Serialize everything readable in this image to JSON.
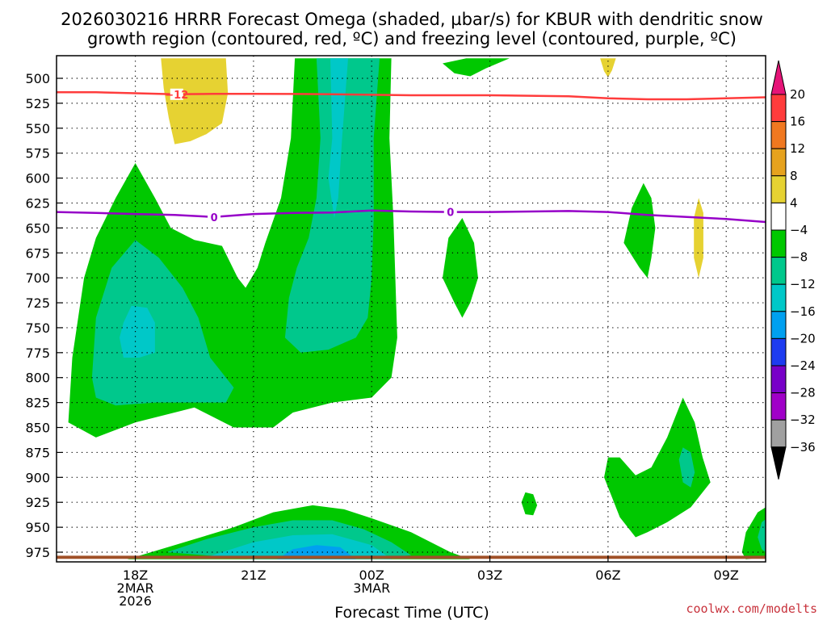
{
  "chart_data": {
    "type": "heatmap",
    "title_line1": "2026030216 HRRR Forecast Omega (shaded, µbar/s) for KBUR with dendritic snow",
    "title_line2": "growth region (contoured, red, ºC) and freezing level (contoured, purple, ºC)",
    "xlabel": "Forecast Time (UTC)",
    "watermark": "coolwx.com/modelts",
    "x_unit": "hours since 16Z 2 Mar 2026",
    "xlim": [
      0,
      18
    ],
    "ylim_hpa": [
      975,
      480
    ],
    "x_ticks": [
      {
        "x": 2,
        "l1": "18Z",
        "l2": "2MAR",
        "l3": "2026"
      },
      {
        "x": 5,
        "l1": "21Z",
        "l2": "",
        "l3": ""
      },
      {
        "x": 8,
        "l1": "00Z",
        "l2": "3MAR",
        "l3": ""
      },
      {
        "x": 11,
        "l1": "03Z",
        "l2": "",
        "l3": ""
      },
      {
        "x": 14,
        "l1": "06Z",
        "l2": "",
        "l3": ""
      },
      {
        "x": 17,
        "l1": "09Z",
        "l2": "",
        "l3": ""
      }
    ],
    "y_ticks": [
      500,
      525,
      550,
      575,
      600,
      625,
      650,
      675,
      700,
      725,
      750,
      775,
      800,
      825,
      850,
      875,
      900,
      925,
      950,
      975
    ],
    "colorbar": {
      "labels": [
        "20",
        "16",
        "12",
        "8",
        "4",
        "−4",
        "−8",
        "−12",
        "−16",
        "−20",
        "−24",
        "−28",
        "−32",
        "−36"
      ],
      "colors": [
        "#ff3c3c",
        "#f07820",
        "#e6a21e",
        "#e6d232",
        "#ffffff",
        "#00c800",
        "#00c88c",
        "#00c8c8",
        "#00a0f0",
        "#1e3cf0",
        "#7800c8",
        "#a000c8",
        "#a0a0a0"
      ],
      "top_color": "#e61478",
      "bottom_color": "#000000"
    },
    "contours": {
      "dgz": {
        "label": "−12",
        "color": "#ff3c3c",
        "points": [
          [
            0,
            514
          ],
          [
            1,
            514
          ],
          [
            2,
            515
          ],
          [
            3,
            516
          ],
          [
            4,
            515.5
          ],
          [
            5,
            515.5
          ],
          [
            6,
            515.7
          ],
          [
            7,
            516
          ],
          [
            8,
            516.5
          ],
          [
            9,
            517
          ],
          [
            10,
            517
          ],
          [
            11,
            517
          ],
          [
            12,
            517.5
          ],
          [
            13,
            518
          ],
          [
            14,
            520
          ],
          [
            15,
            521
          ],
          [
            16,
            521
          ],
          [
            17,
            520
          ],
          [
            18,
            519
          ]
        ]
      },
      "freezing": {
        "label": "0",
        "color": "#9600c8",
        "points": [
          [
            0,
            634
          ],
          [
            1,
            635
          ],
          [
            2,
            636
          ],
          [
            3,
            637
          ],
          [
            4,
            639
          ],
          [
            5,
            636
          ],
          [
            6,
            635
          ],
          [
            7,
            634.5
          ],
          [
            8,
            632.5
          ],
          [
            9,
            633.5
          ],
          [
            10,
            634
          ],
          [
            11,
            634
          ],
          [
            12,
            633.5
          ],
          [
            13,
            633
          ],
          [
            14,
            634
          ],
          [
            15,
            637
          ],
          [
            16,
            639
          ],
          [
            17,
            641
          ],
          [
            18,
            644
          ]
        ]
      }
    },
    "regions": [
      {
        "level": "−4",
        "color": "#00c800",
        "points": [
          [
            0.3,
            845
          ],
          [
            0.4,
            780
          ],
          [
            0.7,
            700
          ],
          [
            1,
            660
          ],
          [
            1.5,
            620
          ],
          [
            2,
            585
          ],
          [
            2.5,
            620
          ],
          [
            2.9,
            650
          ],
          [
            3.5,
            662
          ],
          [
            4.2,
            668
          ],
          [
            4.6,
            700
          ],
          [
            4.8,
            710
          ],
          [
            5.1,
            690
          ],
          [
            5.3,
            665
          ],
          [
            5.7,
            620
          ],
          [
            5.95,
            560
          ],
          [
            6.05,
            480
          ],
          [
            8.5,
            480
          ],
          [
            8.45,
            560
          ],
          [
            8.55,
            640
          ],
          [
            8.6,
            700
          ],
          [
            8.65,
            760
          ],
          [
            8.5,
            800
          ],
          [
            8,
            820
          ],
          [
            7,
            825
          ],
          [
            6,
            835
          ],
          [
            5.5,
            850
          ],
          [
            4.5,
            850
          ],
          [
            3.5,
            830
          ],
          [
            2,
            845
          ],
          [
            1,
            860
          ]
        ]
      },
      {
        "level": "−4",
        "color": "#00c800",
        "points": [
          [
            1.8,
            982
          ],
          [
            3,
            968
          ],
          [
            4.5,
            950
          ],
          [
            5.5,
            935
          ],
          [
            6.5,
            928
          ],
          [
            7.3,
            932
          ],
          [
            8,
            941
          ],
          [
            9,
            955
          ],
          [
            10,
            975
          ],
          [
            10.5,
            982
          ]
        ]
      },
      {
        "level": "−4",
        "color": "#00c800",
        "points": [
          [
            9.8,
            485
          ],
          [
            10.4,
            480
          ],
          [
            11.5,
            480
          ],
          [
            10.9,
            490
          ],
          [
            10.5,
            498
          ],
          [
            10.1,
            495
          ]
        ]
      },
      {
        "level": "−4",
        "color": "#00c800",
        "points": [
          [
            9.8,
            700
          ],
          [
            9.95,
            660
          ],
          [
            10.3,
            640
          ],
          [
            10.6,
            665
          ],
          [
            10.7,
            700
          ],
          [
            10.5,
            725
          ],
          [
            10.3,
            740
          ],
          [
            10.1,
            725
          ]
        ]
      },
      {
        "level": "−4",
        "color": "#00c800",
        "points": [
          [
            14.4,
            665
          ],
          [
            14.6,
            630
          ],
          [
            14.9,
            605
          ],
          [
            15.1,
            620
          ],
          [
            15.2,
            650
          ],
          [
            15.1,
            680
          ],
          [
            15,
            700
          ],
          [
            14.8,
            690
          ]
        ]
      },
      {
        "level": "−4",
        "color": "#00c800",
        "points": [
          [
            13.9,
            900
          ],
          [
            14,
            880
          ],
          [
            14.3,
            880
          ],
          [
            14.7,
            898
          ],
          [
            15.1,
            890
          ],
          [
            15.5,
            860
          ],
          [
            15.9,
            820
          ],
          [
            16.2,
            845
          ],
          [
            16.4,
            880
          ],
          [
            16.6,
            905
          ],
          [
            16.1,
            930
          ],
          [
            15.5,
            945
          ],
          [
            15,
            955
          ],
          [
            14.7,
            960
          ],
          [
            14.3,
            940
          ],
          [
            14.1,
            920
          ]
        ]
      },
      {
        "level": "−4",
        "color": "#00c800",
        "points": [
          [
            11.8,
            925
          ],
          [
            11.9,
            915
          ],
          [
            12.1,
            917
          ],
          [
            12.2,
            928
          ],
          [
            12.1,
            938
          ],
          [
            11.9,
            937
          ]
        ]
      },
      {
        "level": "−4",
        "color": "#00c800",
        "points": [
          [
            17.4,
            975
          ],
          [
            17.5,
            955
          ],
          [
            17.8,
            935
          ],
          [
            18,
            930
          ],
          [
            18,
            980
          ],
          [
            17.5,
            982
          ]
        ]
      },
      {
        "level": "−8",
        "color": "#00c88c",
        "points": [
          [
            0.9,
            800
          ],
          [
            1,
            740
          ],
          [
            1.4,
            690
          ],
          [
            2,
            662
          ],
          [
            2.6,
            680
          ],
          [
            3.2,
            710
          ],
          [
            3.6,
            740
          ],
          [
            3.9,
            780
          ],
          [
            4.5,
            810
          ],
          [
            4.3,
            825
          ],
          [
            3.5,
            825
          ],
          [
            2.5,
            825
          ],
          [
            1.5,
            828
          ],
          [
            1,
            820
          ]
        ]
      },
      {
        "level": "−8",
        "color": "#00c88c",
        "points": [
          [
            5.8,
            760
          ],
          [
            5.9,
            720
          ],
          [
            6.1,
            690
          ],
          [
            6.4,
            660
          ],
          [
            6.6,
            620
          ],
          [
            6.7,
            560
          ],
          [
            6.6,
            480
          ],
          [
            8.2,
            480
          ],
          [
            8.05,
            560
          ],
          [
            8.05,
            640
          ],
          [
            8.0,
            700
          ],
          [
            7.9,
            740
          ],
          [
            7.6,
            760
          ],
          [
            6.9,
            772
          ],
          [
            6.2,
            775
          ]
        ]
      },
      {
        "level": "−8",
        "color": "#00c88c",
        "points": [
          [
            2.8,
            975
          ],
          [
            3.8,
            962
          ],
          [
            5,
            950
          ],
          [
            6,
            943
          ],
          [
            7,
            943
          ],
          [
            7.8,
            952
          ],
          [
            8.5,
            965
          ],
          [
            9,
            978
          ],
          [
            8,
            982
          ],
          [
            5,
            982
          ]
        ]
      },
      {
        "level": "−8",
        "color": "#00c88c",
        "points": [
          [
            15.8,
            882
          ],
          [
            15.9,
            870
          ],
          [
            16.1,
            875
          ],
          [
            16.2,
            895
          ],
          [
            16.1,
            910
          ],
          [
            15.9,
            905
          ]
        ]
      },
      {
        "level": "−8",
        "color": "#00c88c",
        "points": [
          [
            17.8,
            960
          ],
          [
            17.9,
            945
          ],
          [
            18,
            942
          ],
          [
            18,
            975
          ],
          [
            17.9,
            972
          ]
        ]
      },
      {
        "level": "−12",
        "color": "#00c8c8",
        "points": [
          [
            1.6,
            760
          ],
          [
            1.7,
            745
          ],
          [
            1.9,
            728
          ],
          [
            2.3,
            730
          ],
          [
            2.5,
            745
          ],
          [
            2.5,
            775
          ],
          [
            2.1,
            780
          ],
          [
            1.7,
            780
          ]
        ]
      },
      {
        "level": "−12",
        "color": "#00c8c8",
        "points": [
          [
            6.9,
            600
          ],
          [
            7.0,
            560
          ],
          [
            6.95,
            480
          ],
          [
            7.4,
            480
          ],
          [
            7.25,
            560
          ],
          [
            7.15,
            620
          ],
          [
            7.05,
            640
          ]
        ]
      },
      {
        "level": "−12",
        "color": "#00c8c8",
        "points": [
          [
            3.8,
            980
          ],
          [
            5,
            965
          ],
          [
            6,
            958
          ],
          [
            7,
            957
          ],
          [
            8,
            968
          ],
          [
            8.5,
            982
          ]
        ]
      },
      {
        "level": "−16",
        "color": "#00a0f0",
        "points": [
          [
            5.6,
            982
          ],
          [
            6,
            972
          ],
          [
            6.6,
            968
          ],
          [
            7.2,
            970
          ],
          [
            7.6,
            982
          ]
        ]
      },
      {
        "level": "4",
        "color": "#e6d232",
        "points": [
          [
            2.65,
            480
          ],
          [
            4.3,
            480
          ],
          [
            4.35,
            515
          ],
          [
            4.2,
            545
          ],
          [
            3.8,
            556
          ],
          [
            3.4,
            563
          ],
          [
            3,
            566
          ],
          [
            2.85,
            540
          ],
          [
            2.72,
            510
          ]
        ]
      },
      {
        "level": "4",
        "color": "#e6d232",
        "points": [
          [
            13.8,
            480
          ],
          [
            14.2,
            480
          ],
          [
            14.1,
            492
          ],
          [
            14,
            499
          ],
          [
            13.9,
            493
          ]
        ]
      },
      {
        "level": "4",
        "color": "#e6d232",
        "points": [
          [
            16.18,
            640
          ],
          [
            16.3,
            620
          ],
          [
            16.42,
            635
          ],
          [
            16.42,
            680
          ],
          [
            16.3,
            700
          ],
          [
            16.18,
            680
          ]
        ]
      },
      {
        "level": "ground",
        "color": "#a05028",
        "points": [
          [
            0,
            978.6
          ],
          [
            18,
            978.6
          ],
          [
            18,
            981.6
          ],
          [
            0,
            981.6
          ]
        ]
      }
    ]
  }
}
